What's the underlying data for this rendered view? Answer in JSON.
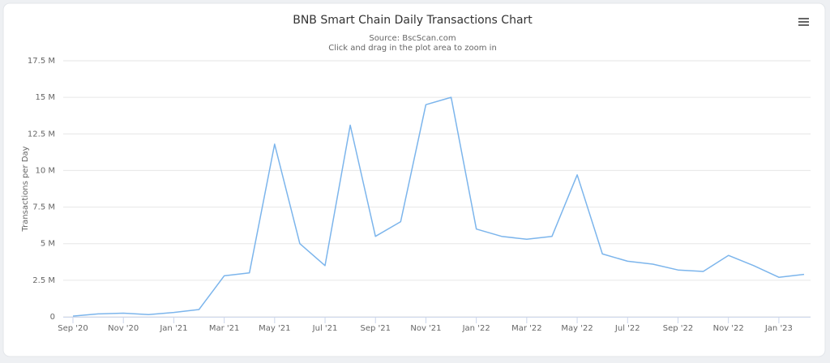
{
  "chart_data": {
    "type": "line",
    "title": "BNB Smart Chain Daily Transactions Chart",
    "subtitle": [
      "Source: BscScan.com",
      "Click and drag in the plot area to zoom in"
    ],
    "y_label": "Transactions per Day",
    "x": [
      "2020-09",
      "2020-10",
      "2020-11",
      "2020-12",
      "2021-01",
      "2021-02",
      "2021-03",
      "2021-04",
      "2021-05",
      "2021-06",
      "2021-07",
      "2021-08",
      "2021-09",
      "2021-10",
      "2021-11",
      "2021-12",
      "2022-01",
      "2022-02",
      "2022-03",
      "2022-04",
      "2022-05",
      "2022-06",
      "2022-07",
      "2022-08",
      "2022-09",
      "2022-10",
      "2022-11",
      "2022-12",
      "2023-01",
      "2023-02"
    ],
    "series": [
      {
        "name": "Transactions per Day",
        "color": "#7cb5ec",
        "values": [
          0.05,
          0.2,
          0.25,
          0.15,
          0.3,
          0.5,
          2.8,
          3.0,
          11.8,
          5.0,
          3.5,
          13.1,
          5.5,
          6.5,
          14.5,
          15.0,
          6.0,
          5.5,
          5.3,
          5.5,
          9.7,
          4.3,
          3.8,
          3.6,
          3.2,
          3.1,
          4.2,
          3.5,
          2.7,
          2.9
        ]
      }
    ],
    "xlim": [
      "2020-09",
      "2023-02"
    ],
    "xticks": [
      {
        "value": "2020-09",
        "label": "Sep '20"
      },
      {
        "value": "2020-11",
        "label": "Nov '20"
      },
      {
        "value": "2021-01",
        "label": "Jan '21"
      },
      {
        "value": "2021-03",
        "label": "Mar '21"
      },
      {
        "value": "2021-05",
        "label": "May '21"
      },
      {
        "value": "2021-07",
        "label": "Jul '21"
      },
      {
        "value": "2021-09",
        "label": "Sep '21"
      },
      {
        "value": "2021-11",
        "label": "Nov '21"
      },
      {
        "value": "2022-01",
        "label": "Jan '22"
      },
      {
        "value": "2022-03",
        "label": "Mar '22"
      },
      {
        "value": "2022-05",
        "label": "May '22"
      },
      {
        "value": "2022-07",
        "label": "Jul '22"
      },
      {
        "value": "2022-09",
        "label": "Sep '22"
      },
      {
        "value": "2022-11",
        "label": "Nov '22"
      },
      {
        "value": "2023-01",
        "label": "Jan '23"
      }
    ],
    "ylim": [
      0,
      17.5
    ],
    "yticks": [
      0,
      {
        "value": 2.5,
        "label": "2.5 M"
      },
      {
        "value": 5,
        "label": "5 M"
      },
      {
        "value": 7.5,
        "label": "7.5 M"
      },
      {
        "value": 10,
        "label": "10 M"
      },
      {
        "value": 12.5,
        "label": "12.5 M"
      },
      {
        "value": 15,
        "label": "15 M"
      },
      {
        "value": 17.5,
        "label": "17.5 M"
      }
    ],
    "grid": true
  }
}
